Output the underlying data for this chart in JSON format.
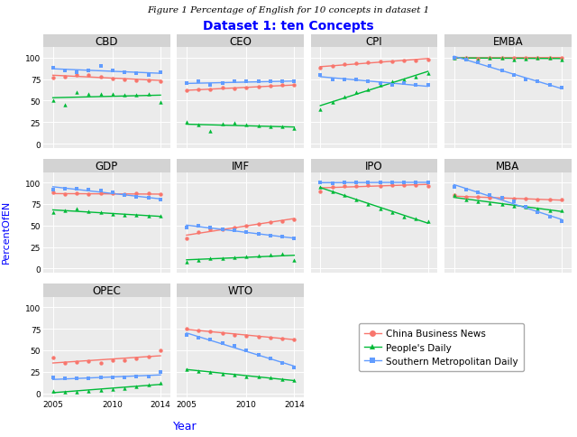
{
  "title_italic": "Figure 1 Percentage of English for 10 concepts in dataset 1",
  "title_main": "Dataset 1: ten Concepts",
  "ylabel": "PercentOfEN",
  "xlabel": "Year",
  "concepts": [
    "CBD",
    "CEO",
    "CPI",
    "EMBA",
    "GDP",
    "IMF",
    "IPO",
    "MBA",
    "OPEC",
    "WTO"
  ],
  "years": [
    2005,
    2006,
    2007,
    2008,
    2009,
    2010,
    2011,
    2012,
    2013,
    2014
  ],
  "colors": {
    "cbn": "#F8766D",
    "pd": "#00BA38",
    "smd": "#619CFF"
  },
  "data": {
    "CBD": {
      "cbn": [
        77,
        78,
        80,
        80,
        78,
        76,
        75,
        74,
        74,
        73
      ],
      "pd": [
        50,
        45,
        60,
        58,
        58,
        58,
        57,
        57,
        58,
        48
      ],
      "smd": [
        88,
        85,
        83,
        85,
        90,
        85,
        83,
        82,
        80,
        83
      ]
    },
    "CEO": {
      "cbn": [
        62,
        63,
        63,
        65,
        64,
        65,
        66,
        67,
        68,
        68
      ],
      "pd": [
        25,
        22,
        15,
        23,
        24,
        22,
        21,
        20,
        20,
        18
      ],
      "smd": [
        70,
        72,
        68,
        70,
        72,
        72,
        73,
        73,
        72,
        72
      ]
    },
    "CPI": {
      "cbn": [
        88,
        90,
        92,
        93,
        95,
        96,
        96,
        97,
        97,
        98
      ],
      "pd": [
        40,
        48,
        55,
        60,
        63,
        68,
        72,
        75,
        78,
        82
      ],
      "smd": [
        80,
        75,
        75,
        75,
        73,
        70,
        68,
        70,
        68,
        68
      ]
    },
    "EMBA": {
      "cbn": [
        100,
        100,
        99,
        100,
        100,
        100,
        100,
        100,
        100,
        100
      ],
      "pd": [
        100,
        100,
        98,
        100,
        100,
        98,
        99,
        100,
        100,
        98
      ],
      "smd": [
        100,
        98,
        95,
        90,
        85,
        80,
        75,
        72,
        68,
        65
      ]
    },
    "GDP": {
      "cbn": [
        88,
        86,
        87,
        86,
        87,
        87,
        86,
        87,
        87,
        86
      ],
      "pd": [
        65,
        68,
        70,
        66,
        65,
        63,
        62,
        62,
        61,
        61
      ],
      "smd": [
        92,
        93,
        93,
        92,
        91,
        88,
        85,
        83,
        82,
        80
      ]
    },
    "IMF": {
      "cbn": [
        35,
        42,
        45,
        46,
        48,
        50,
        52,
        54,
        55,
        57
      ],
      "pd": [
        8,
        10,
        12,
        12,
        13,
        14,
        15,
        16,
        17,
        10
      ],
      "smd": [
        48,
        50,
        48,
        46,
        44,
        42,
        40,
        38,
        37,
        35
      ]
    },
    "IPO": {
      "cbn": [
        90,
        95,
        96,
        96,
        97,
        96,
        97,
        97,
        97,
        96
      ],
      "pd": [
        95,
        90,
        85,
        80,
        75,
        70,
        65,
        60,
        58,
        55
      ],
      "smd": [
        100,
        99,
        100,
        100,
        100,
        100,
        100,
        100,
        100,
        100
      ]
    },
    "MBA": {
      "cbn": [
        85,
        83,
        83,
        82,
        82,
        81,
        81,
        80,
        80,
        80
      ],
      "pd": [
        85,
        80,
        78,
        76,
        75,
        73,
        72,
        70,
        68,
        67
      ],
      "smd": [
        95,
        92,
        88,
        85,
        82,
        78,
        72,
        65,
        60,
        55
      ]
    },
    "OPEC": {
      "cbn": [
        42,
        35,
        36,
        37,
        35,
        38,
        38,
        40,
        43,
        50
      ],
      "pd": [
        3,
        2,
        2,
        3,
        4,
        5,
        6,
        8,
        10,
        12
      ],
      "smd": [
        18,
        17,
        17,
        17,
        18,
        18,
        18,
        19,
        20,
        25
      ]
    },
    "WTO": {
      "cbn": [
        75,
        73,
        72,
        70,
        68,
        67,
        66,
        65,
        64,
        63
      ],
      "pd": [
        28,
        26,
        25,
        23,
        22,
        20,
        19,
        18,
        16,
        15
      ],
      "smd": [
        68,
        65,
        62,
        58,
        55,
        50,
        45,
        40,
        35,
        30
      ]
    }
  },
  "panel_bg": "#EBEBEB",
  "header_bg": "#D3D3D3",
  "grid_color": "white"
}
